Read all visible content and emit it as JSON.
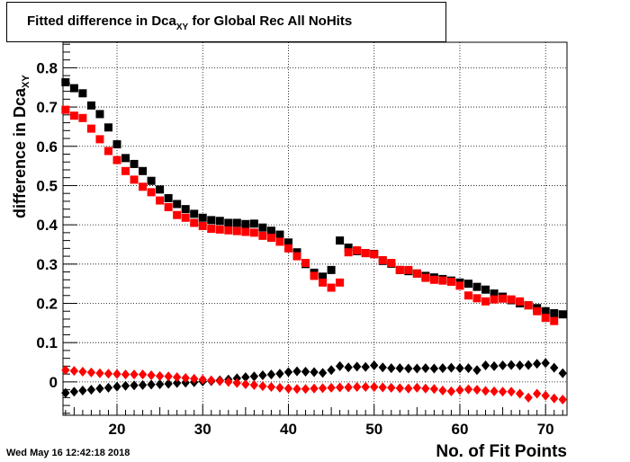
{
  "chart_data": {
    "type": "scatter",
    "title_main": "Fitted difference in Dca",
    "title_sub": "XY",
    "title_rest": " for Global Rec All NoHits",
    "xlabel": "No. of Fit Points",
    "ylabel_main": "difference in Dca",
    "ylabel_sub": "XY",
    "xlim": [
      13.7,
      72.5
    ],
    "ylim": [
      -0.085,
      0.865
    ],
    "xticks": [
      20,
      30,
      40,
      50,
      60,
      70
    ],
    "yticks": [
      0,
      0.1,
      0.2,
      0.3,
      0.4,
      0.5,
      0.6,
      0.7,
      0.8
    ],
    "ytick_labels": [
      "0",
      "0.1",
      "0.2",
      "0.3",
      "0.4",
      "0.5",
      "0.6",
      "0.7",
      "0.8"
    ],
    "grid": true,
    "x": [
      14,
      15,
      16,
      17,
      18,
      19,
      20,
      21,
      22,
      23,
      24,
      25,
      26,
      27,
      28,
      29,
      30,
      31,
      32,
      33,
      34,
      35,
      36,
      37,
      38,
      39,
      40,
      41,
      42,
      43,
      44,
      45,
      46,
      47,
      48,
      49,
      50,
      51,
      52,
      53,
      54,
      55,
      56,
      57,
      58,
      59,
      60,
      61,
      62,
      63,
      64,
      65,
      66,
      67,
      68,
      69,
      70,
      71,
      72
    ],
    "series": [
      {
        "marker": "square",
        "color": "#000000",
        "values": [
          0.763,
          0.748,
          0.735,
          0.704,
          0.682,
          0.648,
          0.605,
          0.57,
          0.555,
          0.537,
          0.512,
          0.49,
          0.468,
          0.453,
          0.44,
          0.428,
          0.418,
          0.412,
          0.41,
          0.405,
          0.405,
          0.402,
          0.403,
          0.393,
          0.385,
          0.375,
          0.355,
          0.33,
          0.3,
          0.278,
          0.268,
          0.285,
          0.36,
          0.342,
          0.333,
          0.328,
          0.326,
          0.308,
          0.301,
          0.285,
          0.282,
          0.276,
          0.27,
          0.266,
          0.262,
          0.258,
          0.253,
          0.25,
          0.242,
          0.235,
          0.225,
          0.217,
          0.208,
          0.2,
          0.195,
          0.188,
          0.18,
          0.175,
          0.172
        ]
      },
      {
        "marker": "square",
        "color": "#ff0000",
        "values": [
          0.693,
          0.678,
          0.672,
          0.645,
          0.618,
          0.588,
          0.565,
          0.537,
          0.515,
          0.497,
          0.483,
          0.462,
          0.445,
          0.425,
          0.418,
          0.405,
          0.397,
          0.39,
          0.388,
          0.386,
          0.384,
          0.382,
          0.38,
          0.372,
          0.367,
          0.357,
          0.34,
          0.32,
          0.303,
          0.27,
          0.253,
          0.24,
          0.253,
          0.33,
          0.335,
          0.328,
          0.325,
          0.31,
          0.303,
          0.285,
          0.285,
          0.276,
          0.265,
          0.26,
          0.258,
          0.255,
          0.245,
          0.22,
          0.213,
          0.205,
          0.21,
          0.212,
          0.21,
          0.205,
          0.195,
          0.18,
          0.163,
          0.155,
          null
        ]
      },
      {
        "marker": "diamond",
        "color": "#000000",
        "values": [
          -0.028,
          -0.025,
          -0.022,
          -0.02,
          -0.017,
          -0.015,
          -0.012,
          -0.01,
          -0.009,
          -0.008,
          -0.007,
          -0.006,
          -0.005,
          -0.003,
          -0.002,
          -0.001,
          0.001,
          0.002,
          0.004,
          0.006,
          0.009,
          0.012,
          0.014,
          0.017,
          0.019,
          0.021,
          0.025,
          0.027,
          0.026,
          0.025,
          0.023,
          0.03,
          0.04,
          0.037,
          0.039,
          0.038,
          0.042,
          0.037,
          0.035,
          0.035,
          0.034,
          0.034,
          0.035,
          0.034,
          0.035,
          0.036,
          0.035,
          0.035,
          0.03,
          0.042,
          0.04,
          0.042,
          0.043,
          0.042,
          0.043,
          0.046,
          0.048,
          0.036,
          0.022
        ]
      },
      {
        "marker": "diamond",
        "color": "#ff0000",
        "values": [
          0.03,
          0.028,
          0.026,
          0.024,
          0.022,
          0.021,
          0.02,
          0.019,
          0.019,
          0.019,
          0.017,
          0.015,
          0.014,
          0.012,
          0.01,
          0.008,
          0.006,
          0.004,
          0.002,
          0.0,
          -0.003,
          -0.006,
          -0.008,
          -0.011,
          -0.013,
          -0.015,
          -0.017,
          -0.018,
          -0.018,
          -0.017,
          -0.016,
          -0.015,
          -0.014,
          -0.014,
          -0.013,
          -0.013,
          -0.013,
          -0.014,
          -0.015,
          -0.016,
          -0.017,
          -0.015,
          -0.017,
          -0.018,
          -0.022,
          -0.024,
          -0.021,
          -0.019,
          -0.02,
          -0.023,
          -0.024,
          -0.025,
          -0.025,
          -0.03,
          -0.04,
          -0.03,
          -0.035,
          -0.042,
          -0.045
        ]
      }
    ]
  },
  "timestamp": "Wed May 16 12:42:18 2018"
}
